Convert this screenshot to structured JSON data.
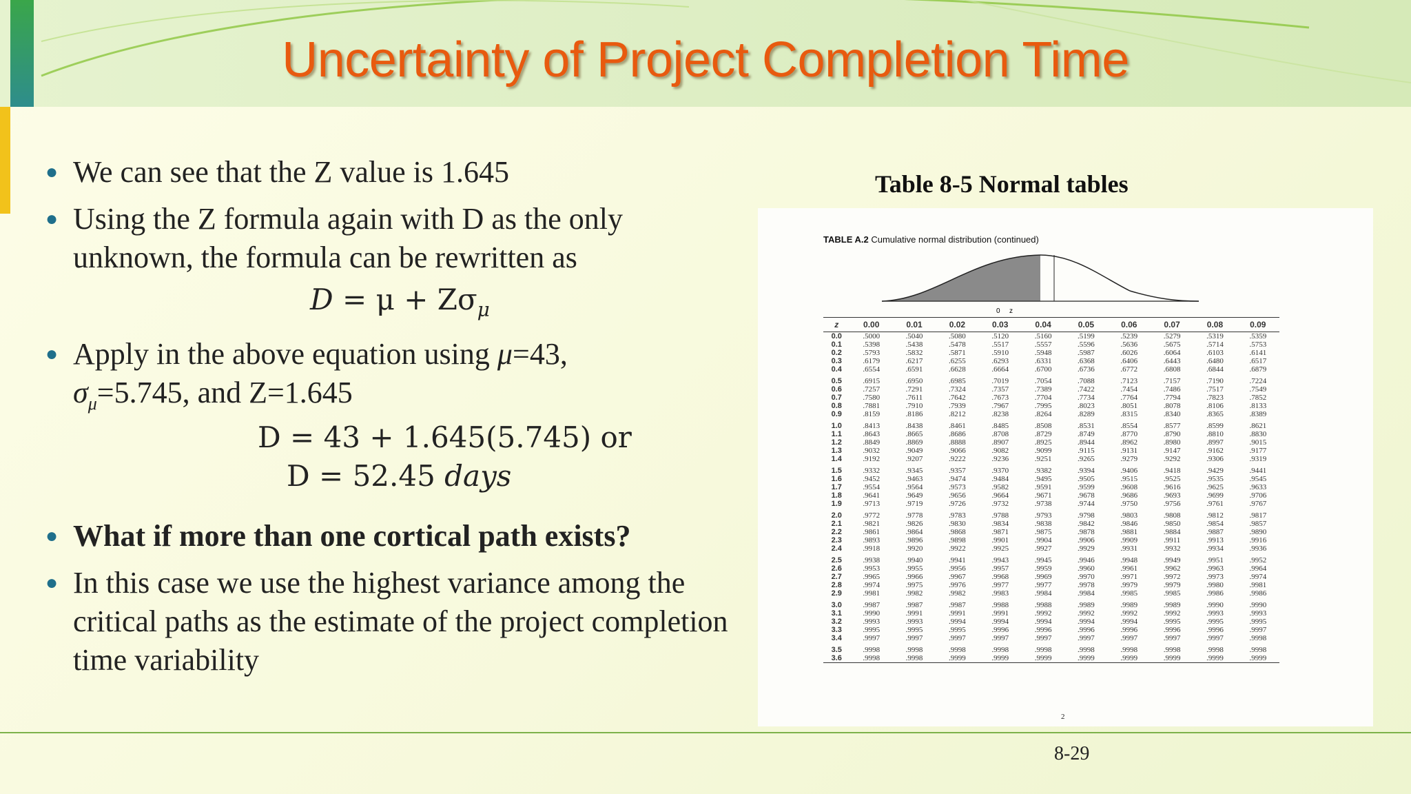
{
  "slide": {
    "title": "Uncertainty of Project Completion Time",
    "page_number": "8-29"
  },
  "bullets": [
    {
      "text": "We can see that the Z value is 1.645"
    },
    {
      "text": "Using the  Z formula again with D as the only unknown, the formula can be rewritten as"
    },
    {
      "text_pre": "Apply  in the above equation using ",
      "mu": "μ",
      "mu_val": "=43,",
      "sigma": "σ",
      "sigma_sub": "μ",
      "sigma_val": "=5.745, and Z=1.645"
    },
    {
      "text": "What if more than one cortical path exists?"
    },
    {
      "text": "In this case we use the highest variance among the critical paths as the estimate of the project completion time variability"
    }
  ],
  "equations": {
    "eq1_lhs": "D",
    "eq1_rhs": " = μ + Zσ",
    "eq1_sub": "μ",
    "eq2": "D = 43 + 1.645(5.745) or",
    "eq3_pre": "D = 52.45 ",
    "eq3_unit": "days"
  },
  "figure": {
    "title": "Table 8-5  Normal tables",
    "caption_bold": "TABLE A.2",
    "caption_rest": " Cumulative normal distribution (continued)",
    "curve_labels": {
      "zero": "0",
      "z": "z"
    },
    "note": "2",
    "headers": [
      "z",
      "0.00",
      "0.01",
      "0.02",
      "0.03",
      "0.04",
      "0.05",
      "0.06",
      "0.07",
      "0.08",
      "0.09"
    ],
    "rows": [
      [
        "0.0",
        ".5000",
        ".5040",
        ".5080",
        ".5120",
        ".5160",
        ".5199",
        ".5239",
        ".5279",
        ".5319",
        ".5359"
      ],
      [
        "0.1",
        ".5398",
        ".5438",
        ".5478",
        ".5517",
        ".5557",
        ".5596",
        ".5636",
        ".5675",
        ".5714",
        ".5753"
      ],
      [
        "0.2",
        ".5793",
        ".5832",
        ".5871",
        ".5910",
        ".5948",
        ".5987",
        ".6026",
        ".6064",
        ".6103",
        ".6141"
      ],
      [
        "0.3",
        ".6179",
        ".6217",
        ".6255",
        ".6293",
        ".6331",
        ".6368",
        ".6406",
        ".6443",
        ".6480",
        ".6517"
      ],
      [
        "0.4",
        ".6554",
        ".6591",
        ".6628",
        ".6664",
        ".6700",
        ".6736",
        ".6772",
        ".6808",
        ".6844",
        ".6879"
      ],
      [
        "0.5",
        ".6915",
        ".6950",
        ".6985",
        ".7019",
        ".7054",
        ".7088",
        ".7123",
        ".7157",
        ".7190",
        ".7224"
      ],
      [
        "0.6",
        ".7257",
        ".7291",
        ".7324",
        ".7357",
        ".7389",
        ".7422",
        ".7454",
        ".7486",
        ".7517",
        ".7549"
      ],
      [
        "0.7",
        ".7580",
        ".7611",
        ".7642",
        ".7673",
        ".7704",
        ".7734",
        ".7764",
        ".7794",
        ".7823",
        ".7852"
      ],
      [
        "0.8",
        ".7881",
        ".7910",
        ".7939",
        ".7967",
        ".7995",
        ".8023",
        ".8051",
        ".8078",
        ".8106",
        ".8133"
      ],
      [
        "0.9",
        ".8159",
        ".8186",
        ".8212",
        ".8238",
        ".8264",
        ".8289",
        ".8315",
        ".8340",
        ".8365",
        ".8389"
      ],
      [
        "1.0",
        ".8413",
        ".8438",
        ".8461",
        ".8485",
        ".8508",
        ".8531",
        ".8554",
        ".8577",
        ".8599",
        ".8621"
      ],
      [
        "1.1",
        ".8643",
        ".8665",
        ".8686",
        ".8708",
        ".8729",
        ".8749",
        ".8770",
        ".8790",
        ".8810",
        ".8830"
      ],
      [
        "1.2",
        ".8849",
        ".8869",
        ".8888",
        ".8907",
        ".8925",
        ".8944",
        ".8962",
        ".8980",
        ".8997",
        ".9015"
      ],
      [
        "1.3",
        ".9032",
        ".9049",
        ".9066",
        ".9082",
        ".9099",
        ".9115",
        ".9131",
        ".9147",
        ".9162",
        ".9177"
      ],
      [
        "1.4",
        ".9192",
        ".9207",
        ".9222",
        ".9236",
        ".9251",
        ".9265",
        ".9279",
        ".9292",
        ".9306",
        ".9319"
      ],
      [
        "1.5",
        ".9332",
        ".9345",
        ".9357",
        ".9370",
        ".9382",
        ".9394",
        ".9406",
        ".9418",
        ".9429",
        ".9441"
      ],
      [
        "1.6",
        ".9452",
        ".9463",
        ".9474",
        ".9484",
        ".9495",
        ".9505",
        ".9515",
        ".9525",
        ".9535",
        ".9545"
      ],
      [
        "1.7",
        ".9554",
        ".9564",
        ".9573",
        ".9582",
        ".9591",
        ".9599",
        ".9608",
        ".9616",
        ".9625",
        ".9633"
      ],
      [
        "1.8",
        ".9641",
        ".9649",
        ".9656",
        ".9664",
        ".9671",
        ".9678",
        ".9686",
        ".9693",
        ".9699",
        ".9706"
      ],
      [
        "1.9",
        ".9713",
        ".9719",
        ".9726",
        ".9732",
        ".9738",
        ".9744",
        ".9750",
        ".9756",
        ".9761",
        ".9767"
      ],
      [
        "2.0",
        ".9772",
        ".9778",
        ".9783",
        ".9788",
        ".9793",
        ".9798",
        ".9803",
        ".9808",
        ".9812",
        ".9817"
      ],
      [
        "2.1",
        ".9821",
        ".9826",
        ".9830",
        ".9834",
        ".9838",
        ".9842",
        ".9846",
        ".9850",
        ".9854",
        ".9857"
      ],
      [
        "2.2",
        ".9861",
        ".9864",
        ".9868",
        ".9871",
        ".9875",
        ".9878",
        ".9881",
        ".9884",
        ".9887",
        ".9890"
      ],
      [
        "2.3",
        ".9893",
        ".9896",
        ".9898",
        ".9901",
        ".9904",
        ".9906",
        ".9909",
        ".9911",
        ".9913",
        ".9916"
      ],
      [
        "2.4",
        ".9918",
        ".9920",
        ".9922",
        ".9925",
        ".9927",
        ".9929",
        ".9931",
        ".9932",
        ".9934",
        ".9936"
      ],
      [
        "2.5",
        ".9938",
        ".9940",
        ".9941",
        ".9943",
        ".9945",
        ".9946",
        ".9948",
        ".9949",
        ".9951",
        ".9952"
      ],
      [
        "2.6",
        ".9953",
        ".9955",
        ".9956",
        ".9957",
        ".9959",
        ".9960",
        ".9961",
        ".9962",
        ".9963",
        ".9964"
      ],
      [
        "2.7",
        ".9965",
        ".9966",
        ".9967",
        ".9968",
        ".9969",
        ".9970",
        ".9971",
        ".9972",
        ".9973",
        ".9974"
      ],
      [
        "2.8",
        ".9974",
        ".9975",
        ".9976",
        ".9977",
        ".9977",
        ".9978",
        ".9979",
        ".9979",
        ".9980",
        ".9981"
      ],
      [
        "2.9",
        ".9981",
        ".9982",
        ".9982",
        ".9983",
        ".9984",
        ".9984",
        ".9985",
        ".9985",
        ".9986",
        ".9986"
      ],
      [
        "3.0",
        ".9987",
        ".9987",
        ".9987",
        ".9988",
        ".9988",
        ".9989",
        ".9989",
        ".9989",
        ".9990",
        ".9990"
      ],
      [
        "3.1",
        ".9990",
        ".9991",
        ".9991",
        ".9991",
        ".9992",
        ".9992",
        ".9992",
        ".9992",
        ".9993",
        ".9993"
      ],
      [
        "3.2",
        ".9993",
        ".9993",
        ".9994",
        ".9994",
        ".9994",
        ".9994",
        ".9994",
        ".9995",
        ".9995",
        ".9995"
      ],
      [
        "3.3",
        ".9995",
        ".9995",
        ".9995",
        ".9996",
        ".9996",
        ".9996",
        ".9996",
        ".9996",
        ".9996",
        ".9997"
      ],
      [
        "3.4",
        ".9997",
        ".9997",
        ".9997",
        ".9997",
        ".9997",
        ".9997",
        ".9997",
        ".9997",
        ".9997",
        ".9998"
      ],
      [
        "3.5",
        ".9998",
        ".9998",
        ".9998",
        ".9998",
        ".9998",
        ".9998",
        ".9998",
        ".9998",
        ".9998",
        ".9998"
      ],
      [
        "3.6",
        ".9998",
        ".9998",
        ".9999",
        ".9999",
        ".9999",
        ".9999",
        ".9999",
        ".9999",
        ".9999",
        ".9999"
      ]
    ]
  }
}
